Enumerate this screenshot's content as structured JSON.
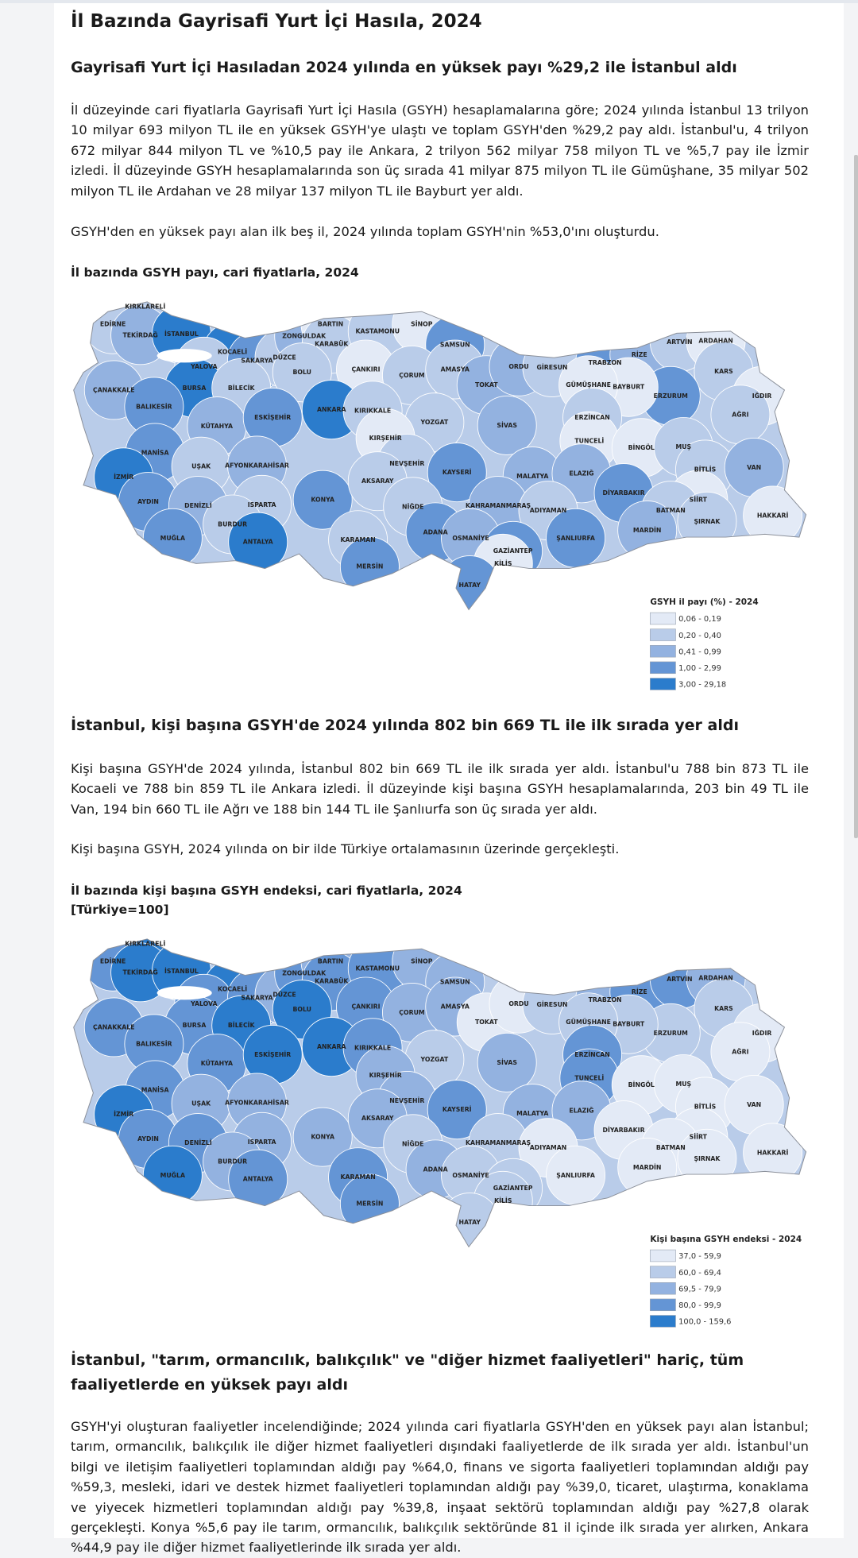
{
  "header": {
    "title": "İl Bazında Gayrisafi Yurt İçi Hasıla, 2024"
  },
  "provinces": [
    "KIRKLARELİ",
    "EDİRNE",
    "TEKİRDAĞ",
    "İSTANBUL",
    "KOCAELİ",
    "YALOVA",
    "SAKARYA",
    "DÜZCE",
    "ZONGULDAK",
    "BARTIN",
    "KARABÜK",
    "KASTAMONU",
    "SİNOP",
    "SAMSUN",
    "ÇANAKKALE",
    "BURSA",
    "BİLECİK",
    "BOLU",
    "ÇANKIRI",
    "ÇORUM",
    "AMASYA",
    "TOKAT",
    "ORDU",
    "GİRESUN",
    "TRABZON",
    "RİZE",
    "ARTVİN",
    "ARDAHAN",
    "KARS",
    "IĞDIR",
    "AĞRI",
    "ERZURUM",
    "BAYBURT",
    "GÜMÜŞHANE",
    "BALIKESİR",
    "KÜTAHYA",
    "ESKİŞEHİR",
    "ANKARA",
    "KIRIKKALE",
    "YOZGAT",
    "SİVAS",
    "ERZİNCAN",
    "TUNCELİ",
    "BİNGÖL",
    "MUŞ",
    "KIRŞEHİR",
    "MANİSA",
    "UŞAK",
    "AFYONKARAHİSAR",
    "NEVŞEHİR",
    "KAYSERİ",
    "MALATYA",
    "ELAZIĞ",
    "BİTLİS",
    "VAN",
    "İZMİR",
    "AYDIN",
    "DENİZLİ",
    "ISPARTA",
    "KONYA",
    "AKSARAY",
    "NİĞDE",
    "DİYARBAKIR",
    "SİİRT",
    "BATMAN",
    "ŞIRNAK",
    "HAKKARİ",
    "KAHRAMANMARAŞ",
    "ADIYAMAN",
    "BURDUR",
    "MUĞLA",
    "ANTALYA",
    "KARAMAN",
    "ADANA",
    "OSMANİYE",
    "ŞANLIURFA",
    "MARDİN",
    "GAZİANTEP",
    "KİLİS",
    "MERSİN",
    "HATAY"
  ],
  "sections": [
    {
      "heading": "Gayrisafi Yurt İçi Hasıladan 2024 yılında en yüksek payı %29,2 ile İstanbul aldı",
      "paragraphs": [
        "İl düzeyinde cari fiyatlarla Gayrisafi Yurt İçi Hasıla (GSYH) hesaplamalarına göre; 2024 yılında İstanbul 13 trilyon 10 milyar 693 milyon TL ile en yüksek GSYH'ye ulaştı ve toplam GSYH'den %29,2 pay aldı. İstanbul'u, 4 trilyon 672 milyar 844 milyon TL ve %10,5 pay ile Ankara, 2 trilyon 562 milyar 758 milyon TL ve %5,7 pay ile İzmir izledi. İl düzeyinde GSYH hesaplamalarında son üç sırada 41 milyar 875 milyon TL ile Gümüşhane, 35 milyar 502 milyon TL ile Ardahan ve 28 milyar 137 milyon TL ile Bayburt yer aldı.",
        "GSYH'den en yüksek payı alan ilk beş il, 2024 yılında toplam GSYH'nin %53,0'ını oluşturdu."
      ],
      "figure": {
        "title": [
          "İl bazında GSYH payı, cari fiyatlarla, 2024"
        ],
        "map": {
          "classes": [
            2,
            2,
            3,
            5,
            5,
            2,
            4,
            2,
            3,
            1,
            2,
            2,
            1,
            4,
            3,
            5,
            2,
            2,
            1,
            2,
            2,
            3,
            3,
            2,
            4,
            3,
            2,
            1,
            2,
            1,
            2,
            4,
            1,
            1,
            4,
            3,
            4,
            5,
            2,
            2,
            3,
            2,
            1,
            1,
            2,
            1,
            4,
            2,
            3,
            2,
            4,
            3,
            3,
            2,
            3,
            5,
            4,
            3,
            2,
            4,
            2,
            2,
            4,
            1,
            2,
            2,
            1,
            3,
            2,
            2,
            4,
            5,
            2,
            4,
            3,
            4,
            3,
            4,
            1,
            4,
            4
          ],
          "legend": {
            "title": "GSYH il payı (%) - 2024",
            "items": [
              "0,06 - 0,19",
              "0,20 - 0,40",
              "0,41 - 0,99",
              "1,00 - 2,99",
              "3,00 - 29,18"
            ],
            "colors": [
              "#e3eaf6",
              "#b9cce9",
              "#93b2e0",
              "#6495d5",
              "#2b7ccc"
            ]
          }
        }
      }
    },
    {
      "heading": "İstanbul, kişi başına GSYH'de 2024 yılında 802 bin 669 TL ile ilk sırada yer aldı",
      "paragraphs": [
        "Kişi başına GSYH'de 2024 yılında, İstanbul 802 bin 669 TL ile ilk sırada yer aldı. İstanbul'u 788 bin 873 TL ile Kocaeli ve 788 bin 859 TL ile Ankara izledi. İl düzeyinde kişi başına GSYH hesaplamalarında, 203 bin 49 TL ile Van, 194 bin 660 TL ile Ağrı ve 188 bin 144 TL ile Şanlıurfa son üç sırada yer aldı.",
        "Kişi başına GSYH, 2024 yılında on bir ilde Türkiye ortalamasının üzerinde gerçekleşti."
      ],
      "figure": {
        "title": [
          "İl bazında kişi başına GSYH endeksi, cari fiyatlarla, 2024",
          "[Türkiye=100]"
        ],
        "map": {
          "classes": [
            5,
            4,
            5,
            5,
            5,
            4,
            4,
            3,
            4,
            3,
            4,
            4,
            3,
            3,
            4,
            4,
            5,
            5,
            4,
            3,
            3,
            1,
            1,
            2,
            3,
            4,
            4,
            3,
            2,
            1,
            1,
            2,
            2,
            2,
            4,
            4,
            5,
            5,
            4,
            2,
            3,
            4,
            4,
            1,
            1,
            3,
            4,
            3,
            3,
            3,
            4,
            3,
            3,
            1,
            1,
            5,
            4,
            4,
            3,
            3,
            3,
            2,
            1,
            1,
            1,
            1,
            1,
            2,
            1,
            3,
            5,
            4,
            4,
            3,
            2,
            1,
            1,
            2,
            2,
            4,
            2
          ],
          "legend": {
            "title": "Kişi başına GSYH endeksi - 2024",
            "items": [
              "37,0 - 59,9",
              "60,0 - 69,4",
              "69,5 - 79,9",
              "80,0 - 99,9",
              "100,0 - 159,6"
            ],
            "colors": [
              "#e3eaf6",
              "#b9cce9",
              "#93b2e0",
              "#6495d5",
              "#2b7ccc"
            ]
          }
        }
      }
    },
    {
      "heading": "İstanbul, \"tarım, ormancılık, balıkçılık\" ve \"diğer hizmet faaliyetleri\" hariç, tüm faaliyetlerde en yüksek payı aldı",
      "paragraphs": [
        "GSYH'yi oluşturan faaliyetler incelendiğinde; 2024 yılında cari fiyatlarla GSYH'den en yüksek payı alan İstanbul; tarım, ormancılık, balıkçılık ile diğer hizmet faaliyetleri dışındaki faaliyetlerde de ilk sırada yer aldı. İstanbul'un bilgi ve iletişim faaliyetleri toplamından aldığı pay %64,0, finans ve sigorta faaliyetleri toplamından aldığı pay %59,3, mesleki, idari ve destek hizmet faaliyetleri toplamından aldığı pay %39,0, ticaret, ulaştırma, konaklama ve yiyecek hizmetleri toplamından aldığı pay %39,8, inşaat sektörü toplamından aldığı pay %27,8 olarak gerçekleşti. Konya %5,6 pay ile tarım, ormancılık, balıkçılık sektöründe 81 il içinde ilk sırada yer alırken, Ankara %44,9 pay ile diğer hizmet faaliyetlerinde ilk sırada yer aldı."
      ]
    }
  ]
}
